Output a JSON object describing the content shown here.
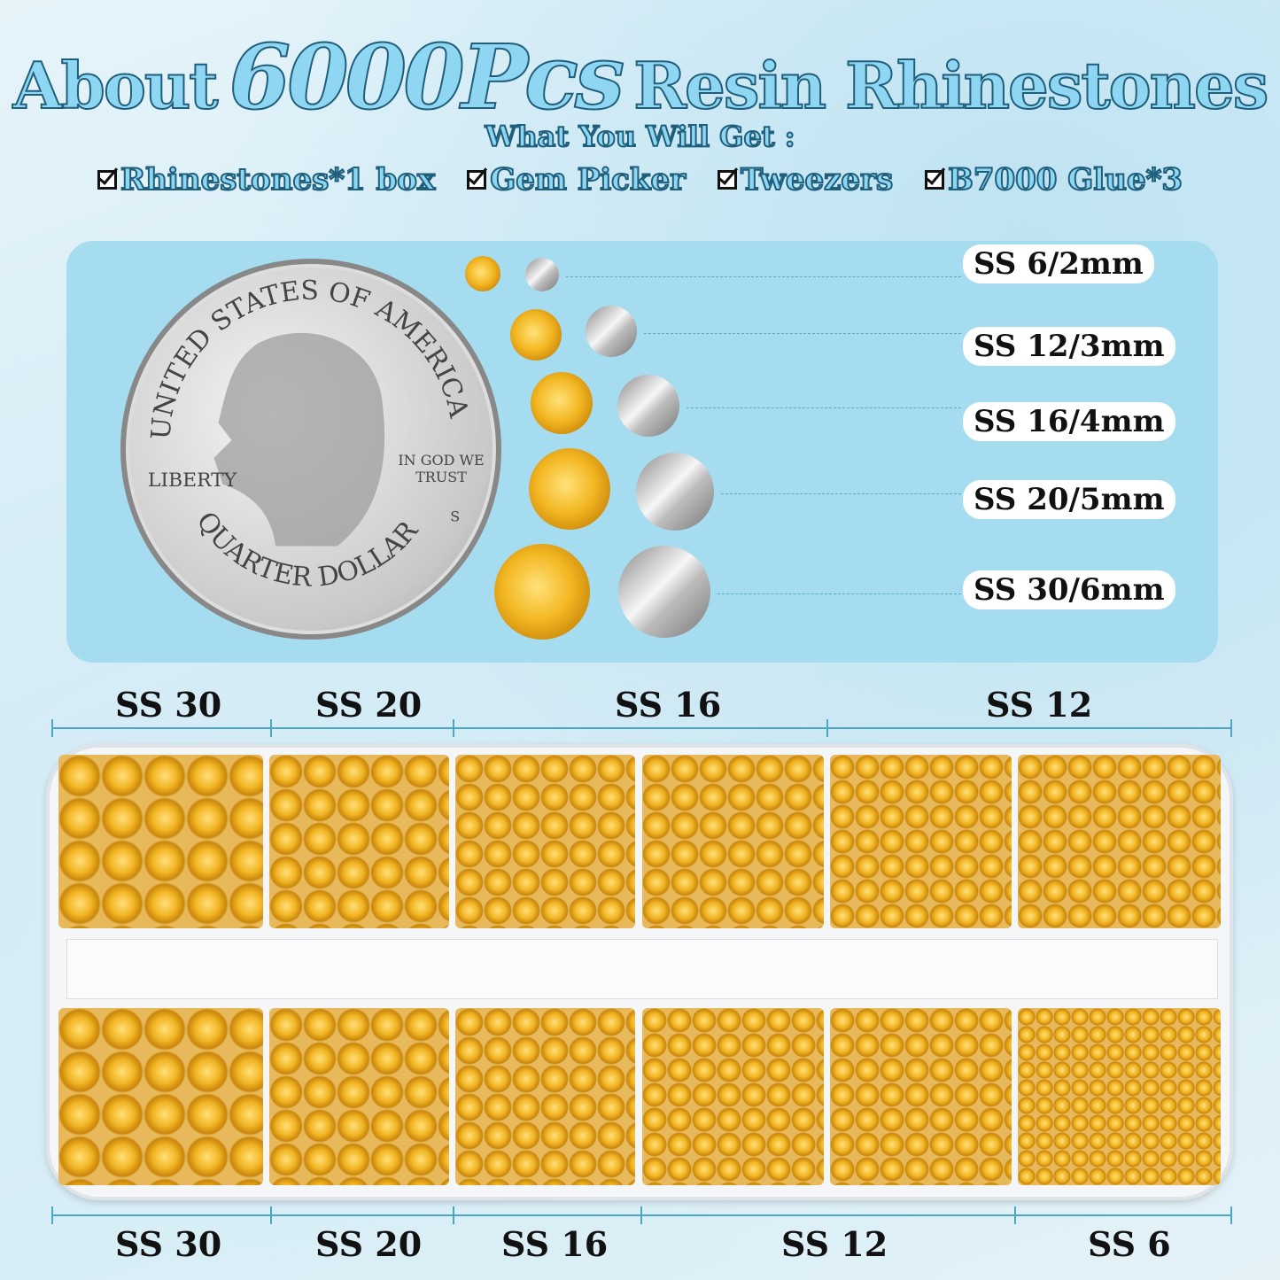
{
  "title": {
    "pre": "About",
    "highlight": "6000Pcs",
    "post": "Resin Rhinestones"
  },
  "subtitle": "What You Will Get :",
  "includes": [
    "Rhinestones*1 box",
    "Gem Picker",
    "Tweezers",
    "B7000 Glue*3"
  ],
  "coin": {
    "top_text": "UNITED STATES OF AMERICA",
    "motto": "IN GOD WE TRUST",
    "left_text": "LIBERTY",
    "mint": "S",
    "bottom_text": "QUARTER DOLLAR"
  },
  "sizes": [
    "SS 6/2mm",
    "SS 12/3mm",
    "SS 16/4mm",
    "SS 20/5mm",
    "SS 30/6mm"
  ],
  "top_labels": [
    "SS 30",
    "SS 20",
    "SS 16",
    "SS 12"
  ],
  "bottom_labels": [
    "SS 30",
    "SS 20",
    "SS 16",
    "SS 12",
    "SS 6"
  ],
  "colors": {
    "stone": "#f3b722",
    "panel": "#a6dcef",
    "title": "#8fd6f3"
  }
}
